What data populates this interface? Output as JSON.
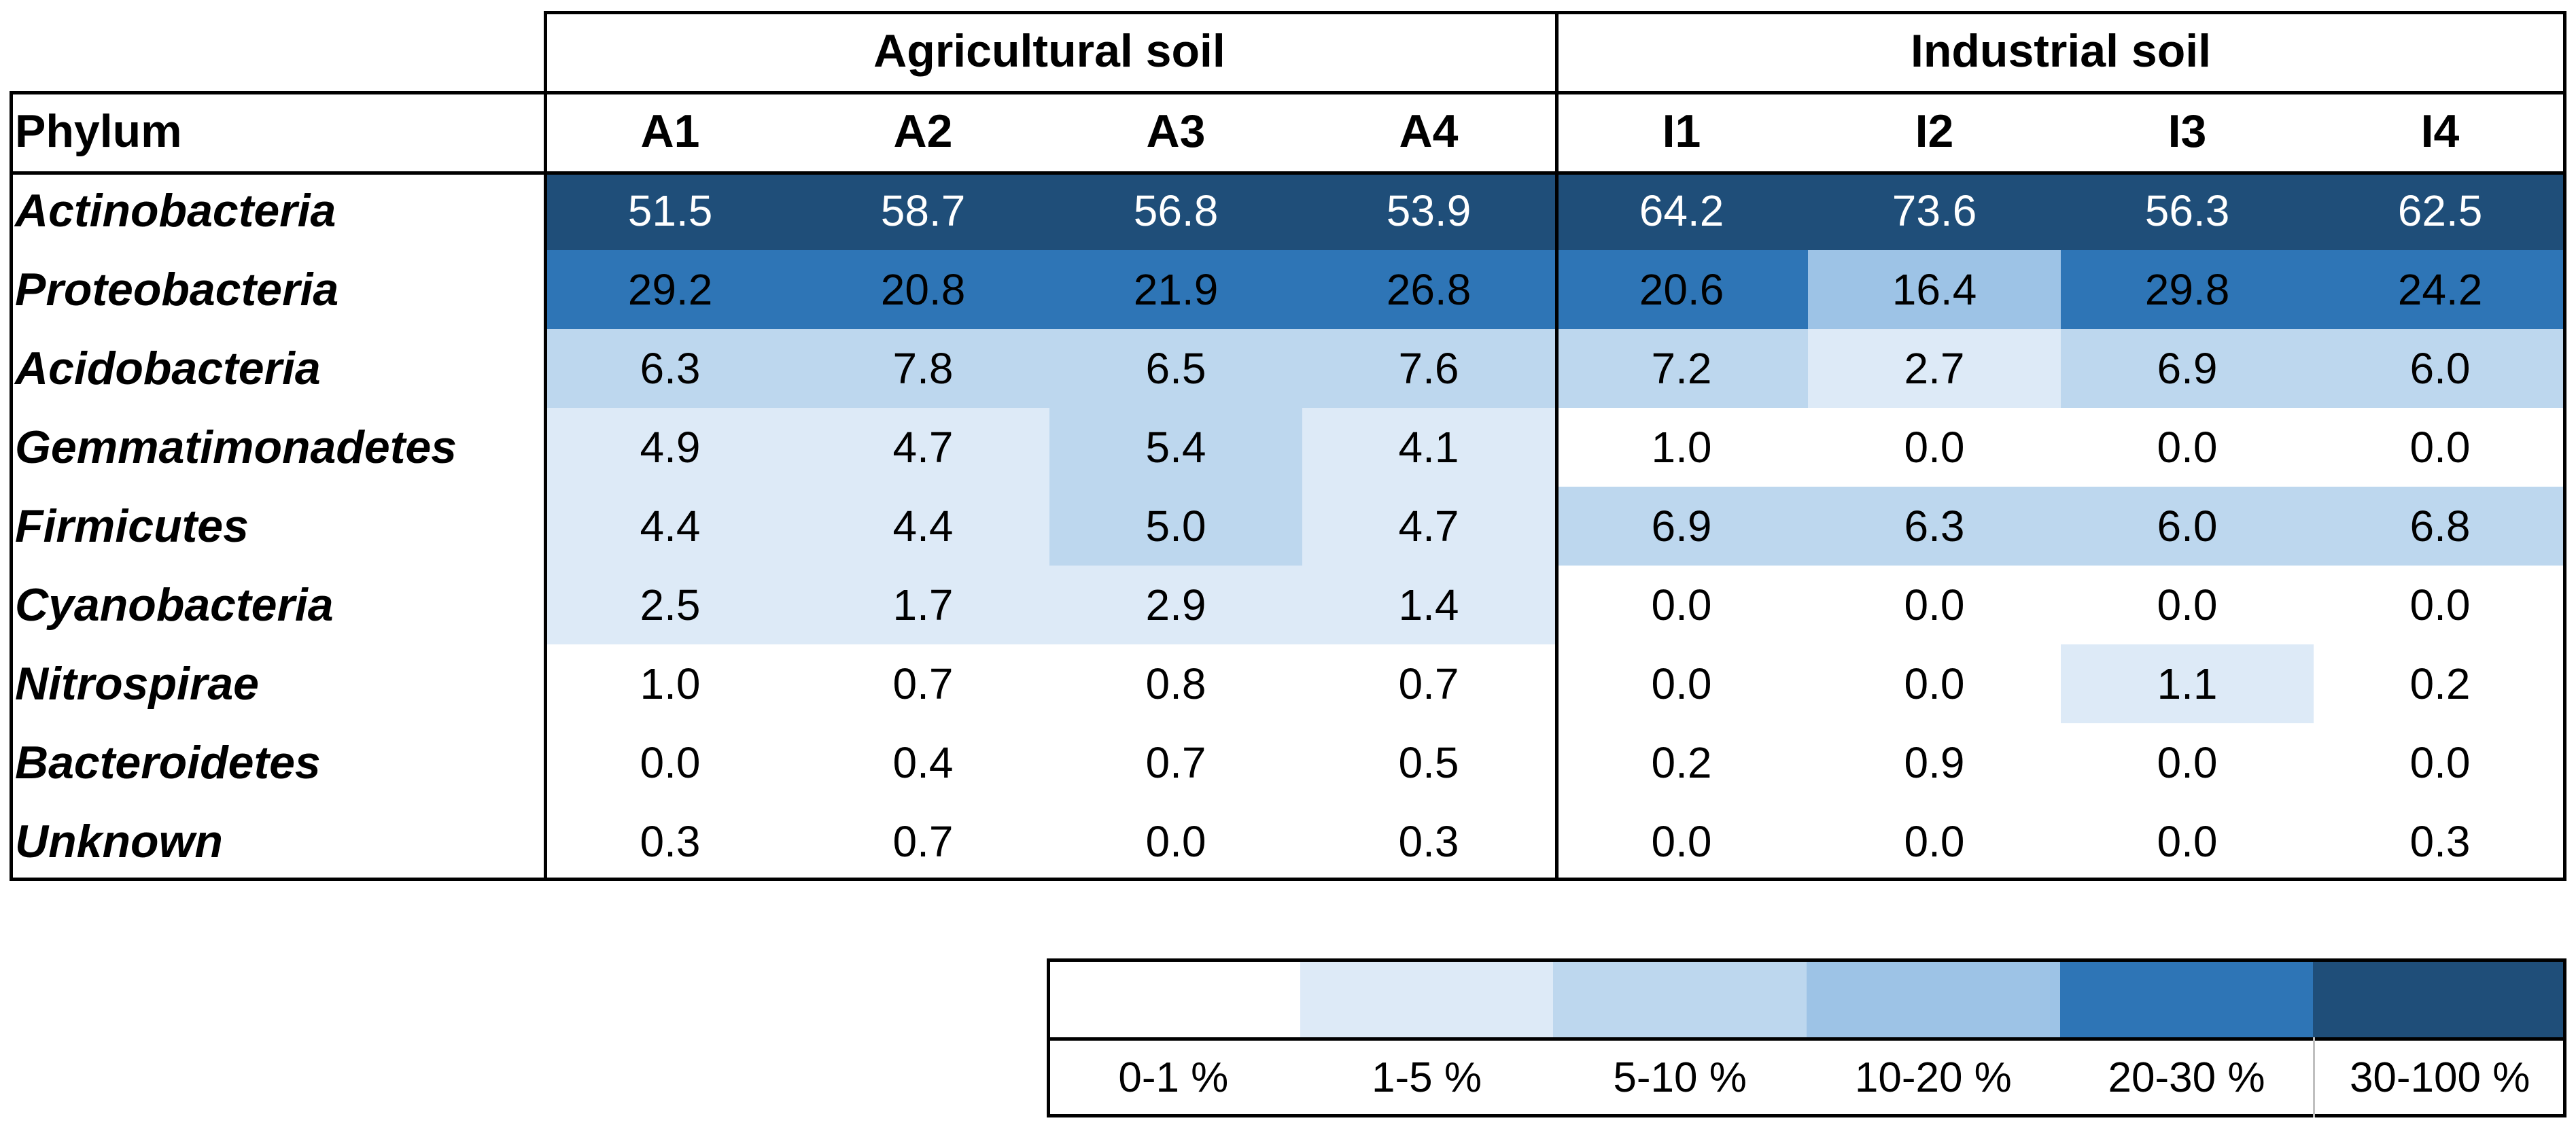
{
  "chart_data": {
    "type": "heatmap",
    "title": "",
    "row_header": "Phylum",
    "groups": [
      {
        "name": "Agricultural soil",
        "columns": [
          "A1",
          "A2",
          "A3",
          "A4"
        ]
      },
      {
        "name": "Industrial soil",
        "columns": [
          "I1",
          "I2",
          "I3",
          "I4"
        ]
      }
    ],
    "columns": [
      "A1",
      "A2",
      "A3",
      "A4",
      "I1",
      "I2",
      "I3",
      "I4"
    ],
    "rows": [
      "Actinobacteria",
      "Proteobacteria",
      "Acidobacteria",
      "Gemmatimonadetes",
      "Firmicutes",
      "Cyanobacteria",
      "Nitrospirae",
      "Bacteroidetes",
      "Unknown"
    ],
    "values": [
      [
        "51.5",
        "58.7",
        "56.8",
        "53.9",
        "64.2",
        "73.6",
        "56.3",
        "62.5"
      ],
      [
        "29.2",
        "20.8",
        "21.9",
        "26.8",
        "20.6",
        "16.4",
        "29.8",
        "24.2"
      ],
      [
        "6.3",
        "7.8",
        "6.5",
        "7.6",
        "7.2",
        "2.7",
        "6.9",
        "6.0"
      ],
      [
        "4.9",
        "4.7",
        "5.4",
        "4.1",
        "1.0",
        "0.0",
        "0.0",
        "0.0"
      ],
      [
        "4.4",
        "4.4",
        "5.0",
        "4.7",
        "6.9",
        "6.3",
        "6.0",
        "6.8"
      ],
      [
        "2.5",
        "1.7",
        "2.9",
        "1.4",
        "0.0",
        "0.0",
        "0.0",
        "0.0"
      ],
      [
        "1.0",
        "0.7",
        "0.8",
        "0.7",
        "0.0",
        "0.0",
        "1.1",
        "0.2"
      ],
      [
        "0.0",
        "0.4",
        "0.7",
        "0.5",
        "0.2",
        "0.9",
        "0.0",
        "0.0"
      ],
      [
        "0.3",
        "0.7",
        "0.0",
        "0.3",
        "0.0",
        "0.0",
        "0.0",
        "0.3"
      ]
    ],
    "color_class": [
      [
        5,
        5,
        5,
        5,
        5,
        5,
        5,
        5
      ],
      [
        4,
        4,
        4,
        4,
        4,
        3,
        4,
        4
      ],
      [
        2,
        2,
        2,
        2,
        2,
        1,
        2,
        2
      ],
      [
        1,
        1,
        2,
        1,
        0,
        0,
        0,
        0
      ],
      [
        1,
        1,
        2,
        1,
        2,
        2,
        2,
        2
      ],
      [
        1,
        1,
        1,
        1,
        0,
        0,
        0,
        0
      ],
      [
        0,
        0,
        0,
        0,
        0,
        0,
        1,
        0
      ],
      [
        0,
        0,
        0,
        0,
        0,
        0,
        0,
        0
      ],
      [
        0,
        0,
        0,
        0,
        0,
        0,
        0,
        0
      ]
    ],
    "legend": [
      {
        "label": "0-1 %",
        "color": "#ffffff",
        "text_color": "#000000"
      },
      {
        "label": "1-5 %",
        "color": "#ddeaf7",
        "text_color": "#000000"
      },
      {
        "label": "5-10 %",
        "color": "#bdd7ee",
        "text_color": "#000000"
      },
      {
        "label": "10-20 %",
        "color": "#9dc3e6",
        "text_color": "#000000"
      },
      {
        "label": "20-30 %",
        "color": "#2e75b6",
        "text_color": "#000000"
      },
      {
        "label": "30-100 %",
        "color": "#1f4e79",
        "text_color": "#ffffff"
      }
    ]
  }
}
